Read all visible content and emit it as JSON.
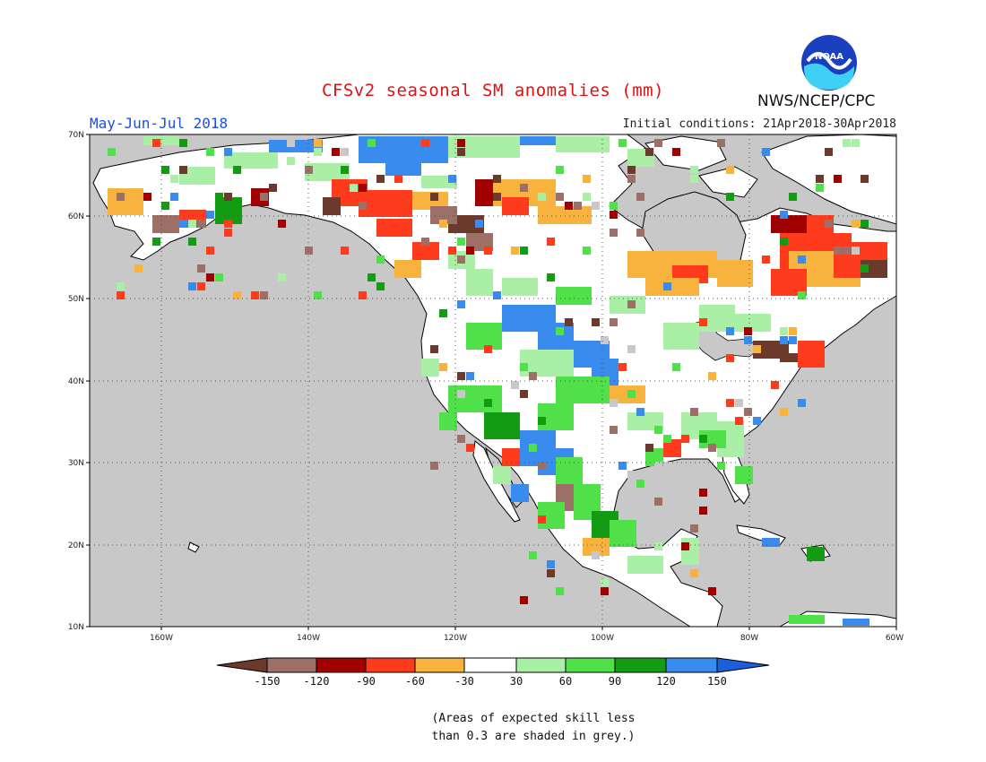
{
  "header": {
    "title": "CFSv2 seasonal SM anomalies (mm)",
    "season": "May-Jun-Jul 2018",
    "initial_conditions": "Initial conditions: 21Apr2018-30Apr2018",
    "agency": "NWS/NCEP/CPC",
    "logo_text": "NOAA"
  },
  "map": {
    "lat_labels": [
      "70N",
      "60N",
      "50N",
      "40N",
      "30N",
      "20N",
      "10N"
    ],
    "lon_labels": [
      "160W",
      "140W",
      "120W",
      "100W",
      "80W",
      "60W"
    ],
    "colors": {
      "ocean": "#c8c8c8",
      "land_neutral": "#ffffff",
      "coast": "#000000"
    }
  },
  "legend": {
    "ticks": [
      "-150",
      "-120",
      "-90",
      "-60",
      "-30",
      "30",
      "60",
      "90",
      "120",
      "150"
    ],
    "colors": [
      "#6b3a2c",
      "#9c7066",
      "#a00000",
      "#ff3b1e",
      "#f8b23e",
      "#ffffff",
      "#a9f0a6",
      "#4fe04a",
      "#139b13",
      "#3a8bee",
      "#1c5fdc"
    ]
  },
  "footnote": {
    "line1": "(Areas of expected skill less",
    "line2": "than 0.3 are shaded in grey.)"
  }
}
